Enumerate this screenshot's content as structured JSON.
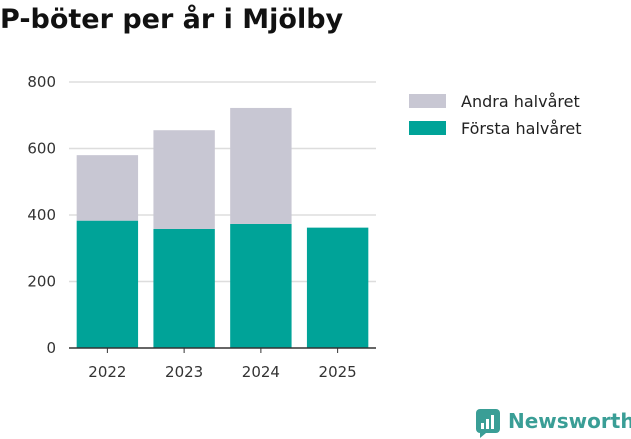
{
  "chart_data": {
    "type": "bar",
    "stacked": true,
    "title": "P-böter per år i Mjölby",
    "xlabel": "",
    "ylabel": "",
    "categories": [
      "2022",
      "2023",
      "2024",
      "2025"
    ],
    "series": [
      {
        "name": "Första halvåret",
        "color": "#00a398",
        "values": [
          383,
          358,
          373,
          362
        ]
      },
      {
        "name": "Andra halvåret",
        "color": "#c8c7d3",
        "values": [
          197,
          297,
          349,
          0
        ]
      }
    ],
    "legend_order": [
      "Andra halvåret",
      "Första halvåret"
    ],
    "ylim": [
      0,
      800
    ],
    "yticks": [
      0,
      200,
      400,
      600,
      800
    ],
    "grid": true,
    "legend_position": "right"
  },
  "branding": {
    "name": "Newsworthy",
    "color": "#3a9e96"
  }
}
